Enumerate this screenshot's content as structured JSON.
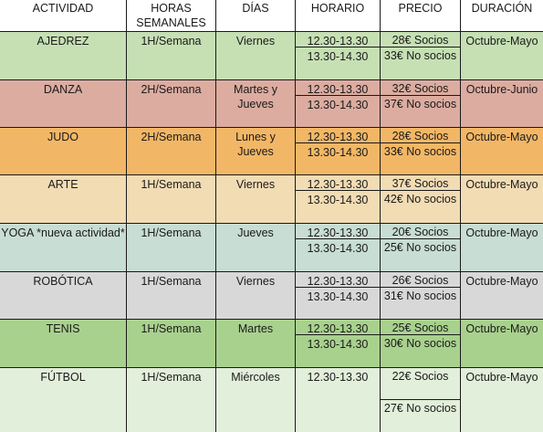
{
  "headers": [
    "ACTIVIDAD",
    "HORAS SEMANALES",
    "DÍAS",
    "HORARIO",
    "PRECIO",
    "DURACIÓN"
  ],
  "rows": [
    {
      "actividad": "AJEDREZ",
      "horas": "1H/Semana",
      "dias": "Viernes",
      "horario": [
        "12.30-13.30",
        "13.30-14.30"
      ],
      "precio": [
        "28€ Socios",
        "33€ No socios"
      ],
      "duracion": "Octubre-Mayo",
      "color": "#c6e0b4"
    },
    {
      "actividad": "DANZA",
      "horas": "2H/Semana",
      "dias": "Martes y Jueves",
      "horario": [
        "12.30-13.30",
        "13.30-14.30"
      ],
      "precio": [
        "32€ Socios",
        "37€ No socios"
      ],
      "duracion": "Octubre-Junio",
      "color": "#dcaca0"
    },
    {
      "actividad": "JUDO",
      "horas": "2H/Semana",
      "dias": "Lunes y Jueves",
      "horario": [
        "12.30-13.30",
        "13.30-14.30"
      ],
      "precio": [
        "28€ Socios",
        "33€ No socios"
      ],
      "duracion": "Octubre-Mayo",
      "color": "#f2b766"
    },
    {
      "actividad": "ARTE",
      "horas": "1H/Semana",
      "dias": "Viernes",
      "horario": [
        "12.30-13.30",
        "13.30-14.30"
      ],
      "precio": [
        "37€ Socios",
        "42€ No socios"
      ],
      "duracion": "Octubre-Mayo",
      "color": "#f2dcb4"
    },
    {
      "actividad": "YOGA *nueva actividad*",
      "horas": "1H/Semana",
      "dias": "Jueves",
      "horario": [
        "12.30-13.30",
        "13.30-14.30"
      ],
      "precio": [
        "20€ Socios",
        "25€ No socios"
      ],
      "duracion": "Octubre-Mayo",
      "color": "#c8ddd4"
    },
    {
      "actividad": "ROBÓTICA",
      "horas": "1H/Semana",
      "dias": "Viernes",
      "horario": [
        "12.30-13.30",
        "13.30-14.30"
      ],
      "precio": [
        "26€ Socios",
        "31€ No socios"
      ],
      "duracion": "Octubre-Mayo",
      "color": "#d8d8d8"
    },
    {
      "actividad": "TENIS",
      "horas": "1H/Semana",
      "dias": "Martes",
      "horario": [
        "12.30-13.30",
        "13.30-14.30"
      ],
      "precio": [
        "25€ Socios",
        "30€ No socios"
      ],
      "duracion": "Octubre-Mayo",
      "color": "#a9d18e"
    },
    {
      "actividad": "FÚTBOL",
      "horas": "1H/Semana",
      "dias": "Miércoles",
      "horario": [
        "12.30-13.30"
      ],
      "precio": [
        "22€ Socios",
        "27€ No socios"
      ],
      "duracion": "Octubre-Mayo",
      "color": "#e2efda"
    }
  ]
}
